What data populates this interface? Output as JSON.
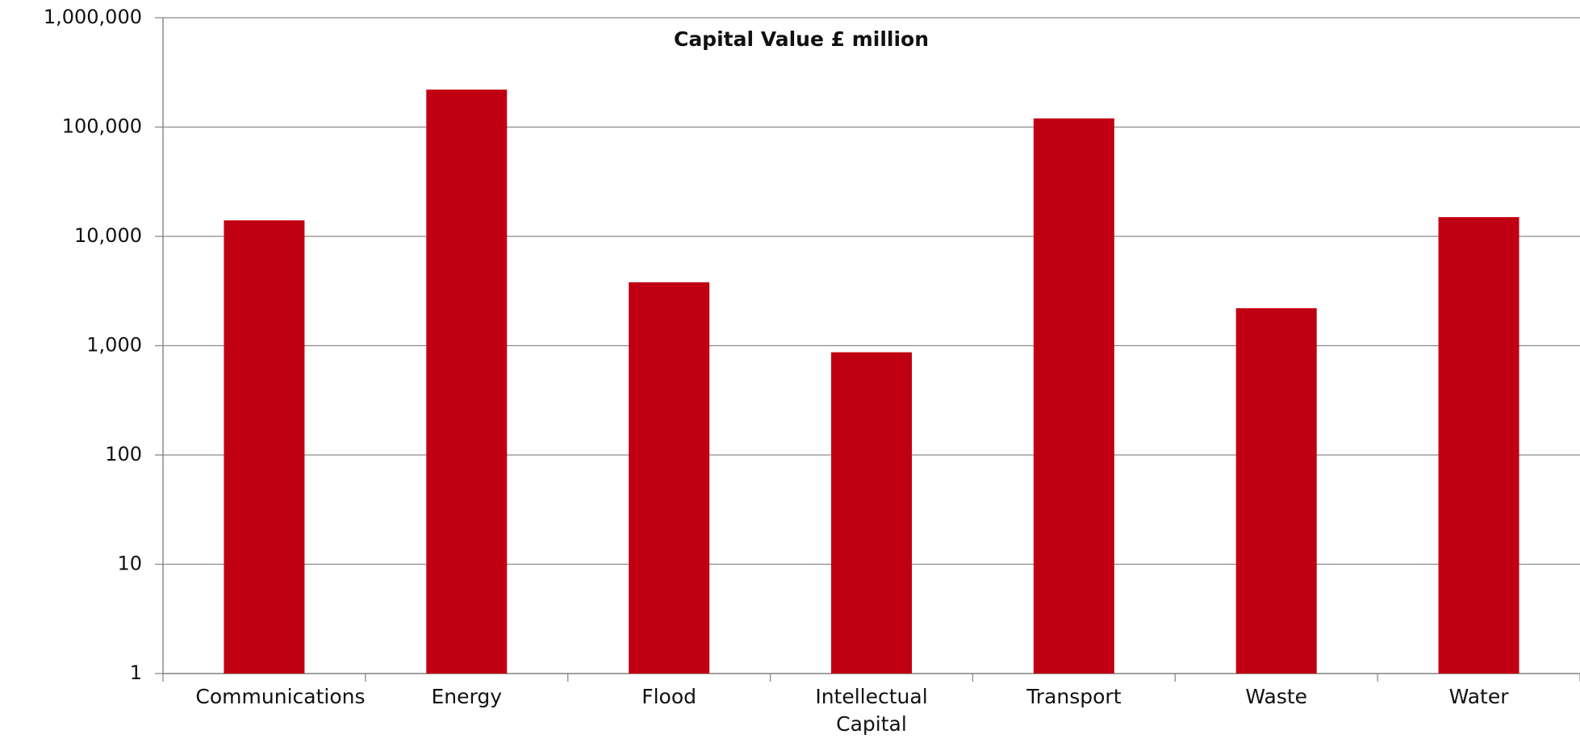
{
  "chart_data": {
    "type": "bar",
    "title": "Capital Value £ million",
    "categories": [
      "Communications",
      "Energy",
      "Flood",
      "Intellectual Capital",
      "Transport",
      "Waste",
      "Water"
    ],
    "values": [
      14000,
      220000,
      3800,
      870,
      120000,
      2200,
      15000
    ],
    "color": "#c00012",
    "log_scale": true,
    "ylim": [
      1,
      1000000
    ],
    "yticks": [
      1,
      10,
      100,
      {
        "value": 1000,
        "label": "1,000"
      },
      {
        "value": 10000,
        "label": "10,000"
      },
      {
        "value": 100000,
        "label": "100,000"
      },
      {
        "value": 1000000,
        "label": "1,000,000"
      }
    ],
    "grid": true
  }
}
